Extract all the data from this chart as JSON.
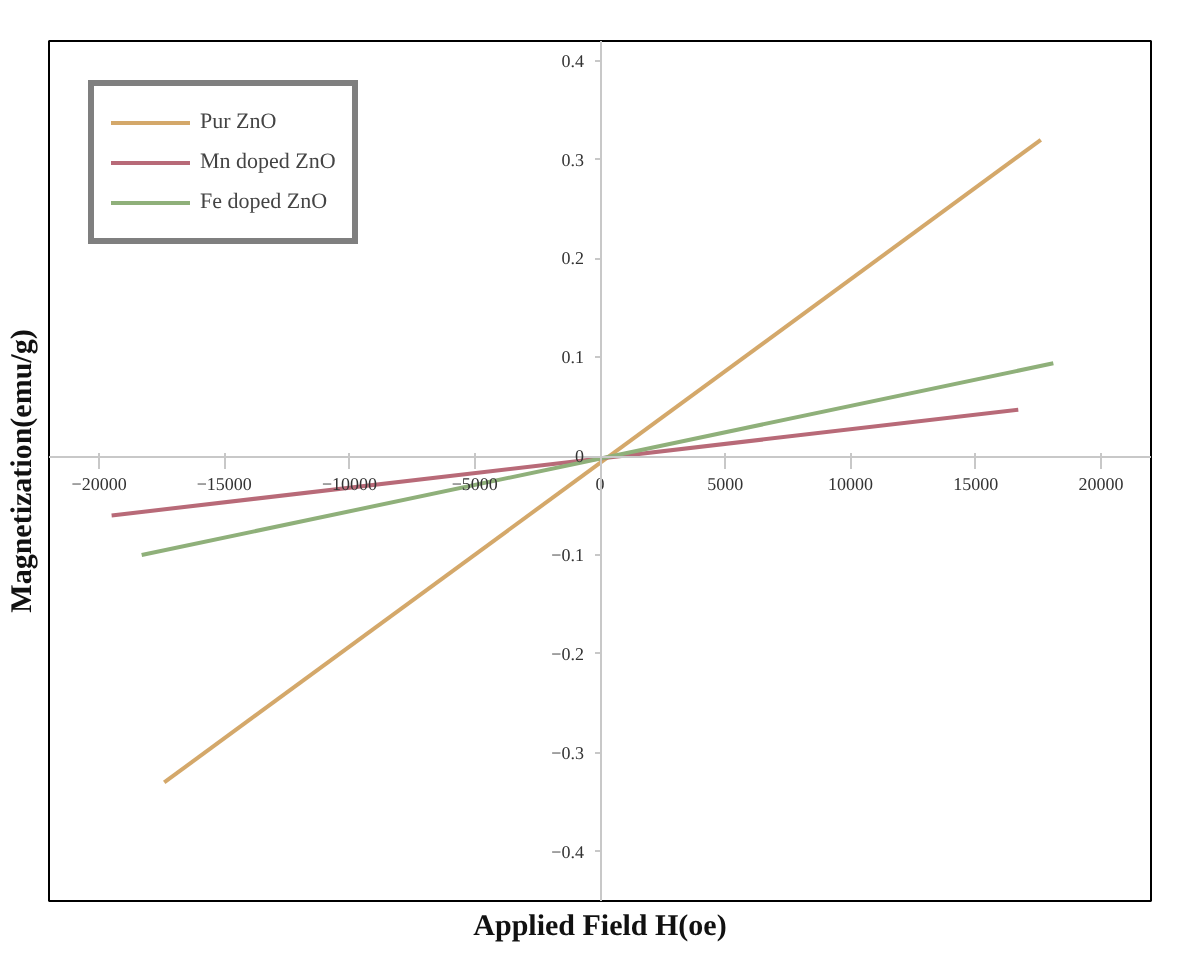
{
  "chart_data": {
    "type": "line",
    "xlabel": "Applied Field H(oe)",
    "ylabel": "Magnetization(emu/g)",
    "xlim": [
      -22000,
      22000
    ],
    "ylim": [
      -0.45,
      0.42
    ],
    "xticks": [
      -20000,
      -15000,
      -10000,
      -5000,
      0,
      5000,
      10000,
      15000,
      20000
    ],
    "yticks": [
      -0.4,
      -0.3,
      -0.2,
      -0.1,
      0,
      0.1,
      0.2,
      0.3,
      0.4
    ],
    "legend": "top left",
    "grid": false,
    "marker": "none",
    "line_style": "solid",
    "series": [
      {
        "name": "Pur ZnO",
        "color": "#d4a86a",
        "x": [
          -17400,
          17600
        ],
        "values": [
          -0.33,
          0.32
        ]
      },
      {
        "name": "Mn doped ZnO",
        "color": "#b86a78",
        "x": [
          -19500,
          16700
        ],
        "values": [
          -0.06,
          0.047
        ]
      },
      {
        "name": "Fe doped ZnO",
        "color": "#8fb07a",
        "x": [
          -18300,
          18100
        ],
        "values": [
          -0.1,
          0.094
        ]
      }
    ]
  }
}
